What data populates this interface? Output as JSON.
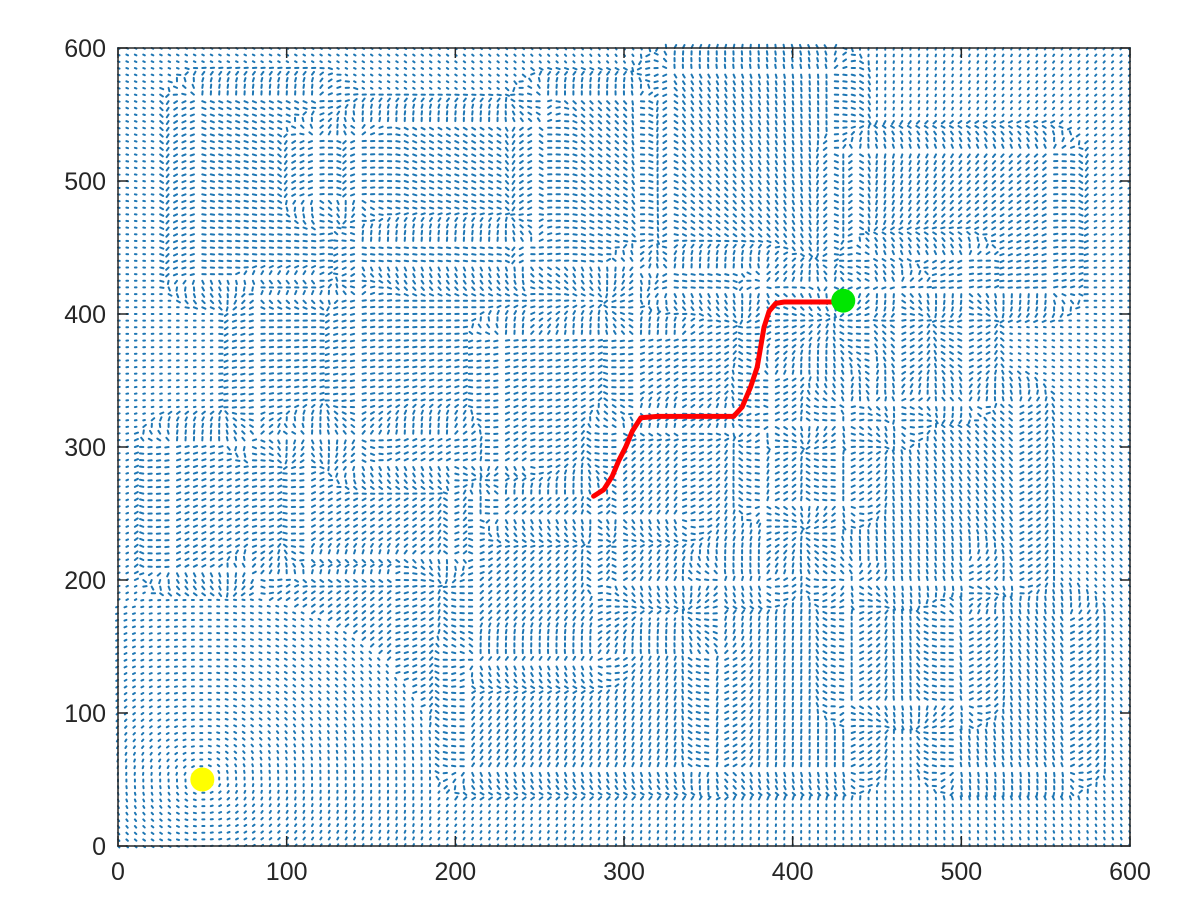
{
  "chart_data": {
    "type": "quiver",
    "title": "",
    "xlabel": "",
    "ylabel": "",
    "xlim": [
      0,
      600
    ],
    "ylim": [
      0,
      600
    ],
    "xticks": [
      "0",
      "100",
      "200",
      "300",
      "400",
      "500",
      "600"
    ],
    "yticks": [
      "0",
      "100",
      "200",
      "300",
      "400",
      "500",
      "600"
    ],
    "grid": false,
    "legend": "none",
    "colors": {
      "vector_field": "#1f77b4",
      "path": "#ff0000",
      "start_point": "#ffff00",
      "goal_point": "#00e600",
      "axes": "#262626"
    },
    "vector_field": {
      "grid_spacing": 5,
      "obstacles": [
        {
          "x": [
            50,
            115
          ],
          "y": [
            430,
            560
          ]
        },
        {
          "x": [
            145,
            240
          ],
          "y": [
            290,
            450
          ]
        },
        {
          "x": [
            120,
            140
          ],
          "y": [
            490,
            530
          ]
        },
        {
          "x": [
            145,
            245
          ],
          "y": [
            440,
            540
          ]
        },
        {
          "x": [
            255,
            305
          ],
          "y": [
            440,
            560
          ]
        },
        {
          "x": [
            330,
            420
          ],
          "y": [
            420,
            580
          ]
        },
        {
          "x": [
            440,
            550
          ],
          "y": [
            420,
            520
          ]
        },
        {
          "x": [
            390,
            460
          ],
          "y": [
            320,
            420
          ]
        },
        {
          "x": [
            450,
            500
          ],
          "y": [
            340,
            440
          ]
        },
        {
          "x": [
            310,
            380
          ],
          "y": [
            330,
            430
          ]
        },
        {
          "x": [
            230,
            330
          ],
          "y": [
            250,
            380
          ]
        },
        {
          "x": [
            85,
            140
          ],
          "y": [
            310,
            410
          ]
        },
        {
          "x": [
            35,
            75
          ],
          "y": [
            210,
            300
          ]
        },
        {
          "x": [
            115,
            195
          ],
          "y": [
            220,
            305
          ]
        },
        {
          "x": [
            215,
            280
          ],
          "y": [
            140,
            260
          ]
        },
        {
          "x": [
            300,
            380
          ],
          "y": [
            200,
            310
          ]
        },
        {
          "x": [
            85,
            160
          ],
          "y": [
            110,
            200
          ]
        },
        {
          "x": [
            210,
            350
          ],
          "y": [
            60,
            140
          ]
        },
        {
          "x": [
            360,
            430
          ],
          "y": [
            60,
            200
          ]
        },
        {
          "x": [
            440,
            500
          ],
          "y": [
            110,
            210
          ]
        },
        {
          "x": [
            500,
            560
          ],
          "y": [
            60,
            170
          ]
        },
        {
          "x": [
            430,
            530
          ],
          "y": [
            200,
            330
          ]
        },
        {
          "x": [
            390,
            430
          ],
          "y": [
            260,
            350
          ]
        }
      ]
    },
    "path": {
      "x": [
        282,
        288,
        293,
        297,
        301,
        305,
        310,
        320,
        335,
        350,
        365,
        370,
        375,
        379,
        381,
        383,
        386,
        390,
        395,
        410,
        425,
        430
      ],
      "y": [
        263,
        268,
        278,
        290,
        300,
        312,
        322,
        323,
        323,
        323,
        323,
        330,
        345,
        360,
        375,
        390,
        402,
        408,
        409,
        409,
        409,
        410
      ]
    },
    "start": {
      "x": 50,
      "y": 50
    },
    "goal": {
      "x": 430,
      "y": 410
    }
  }
}
